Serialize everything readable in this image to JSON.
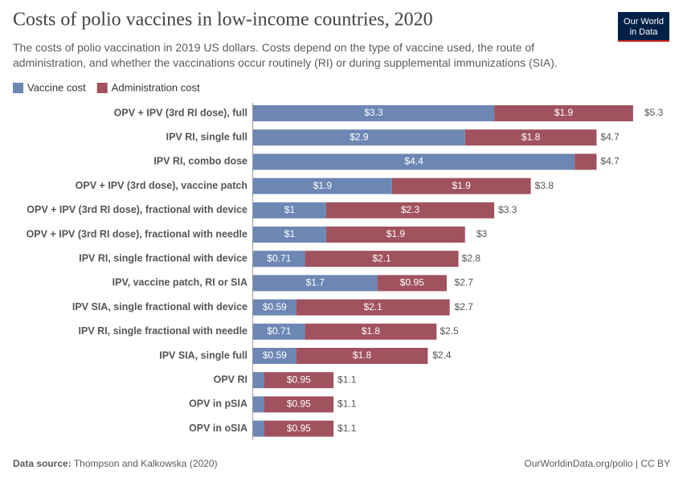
{
  "chart_data": {
    "type": "bar",
    "orientation": "horizontal",
    "stacked": true,
    "title": "Costs of polio vaccines in low-income countries, 2020",
    "subtitle": "The costs of polio vaccination in 2019 US dollars. Costs depend on the type of vaccine used, the route of administration, and whether the vaccinations occur routinely (RI) or during supplemental immunizations (SIA).",
    "categories": [
      "OPV + IPV (3rd RI dose), full",
      "IPV RI, single full",
      "IPV RI, combo dose",
      "OPV + IPV (3rd dose), vaccine patch",
      "OPV + IPV (3rd RI dose), fractional with device",
      "OPV + IPV (3rd RI dose), fractional with needle",
      "IPV RI, single fractional with device",
      "IPV, vaccine patch, RI or SIA",
      "IPV SIA, single fractional with device",
      "IPV RI, single fractional with needle",
      "IPV SIA, single full",
      "OPV RI",
      "OPV in pSIA",
      "OPV in oSIA"
    ],
    "series": [
      {
        "name": "Vaccine cost",
        "color": "#6d87b4",
        "values": [
          3.3,
          2.9,
          4.4,
          1.9,
          1,
          1,
          0.71,
          1.7,
          0.59,
          0.71,
          0.59,
          0.15,
          0.15,
          0.15
        ],
        "value_labels": [
          "$3.3",
          "$2.9",
          "$4.4",
          "$1.9",
          "$1",
          "$1",
          "$0.71",
          "$1.7",
          "$0.59",
          "$0.71",
          "$0.59",
          null,
          null,
          null
        ]
      },
      {
        "name": "Administration cost",
        "color": "#a0525e",
        "values": [
          1.9,
          1.8,
          0.3,
          1.9,
          2.3,
          1.9,
          2.1,
          0.95,
          2.1,
          1.8,
          1.8,
          0.95,
          0.95,
          0.95
        ],
        "value_labels": [
          "$1.9",
          "$1.8",
          null,
          "$1.9",
          "$2.3",
          "$1.9",
          "$2.1",
          "$0.95",
          "$2.1",
          "$1.8",
          "$1.8",
          "$0.95",
          "$0.95",
          "$0.95"
        ]
      }
    ],
    "totals": {
      "values": [
        5.3,
        4.7,
        4.7,
        3.8,
        3.3,
        3,
        2.8,
        2.7,
        2.7,
        2.5,
        2.4,
        1.1,
        1.1,
        1.1
      ],
      "value_labels": [
        "$5.3",
        "$4.7",
        "$4.7",
        "$3.8",
        "$3.3",
        "$3",
        "$2.8",
        "$2.7",
        "$2.7",
        "$2.5",
        "$2.4",
        "$1.1",
        "$1.1",
        "$1.1"
      ]
    },
    "legend_position": "top-left",
    "source_label": "Data source:",
    "source": "Thompson and Kalkowska (2020)",
    "footer_right": "OurWorldinData.org/polio | CC BY",
    "logo": [
      "Our World",
      "in Data"
    ]
  }
}
